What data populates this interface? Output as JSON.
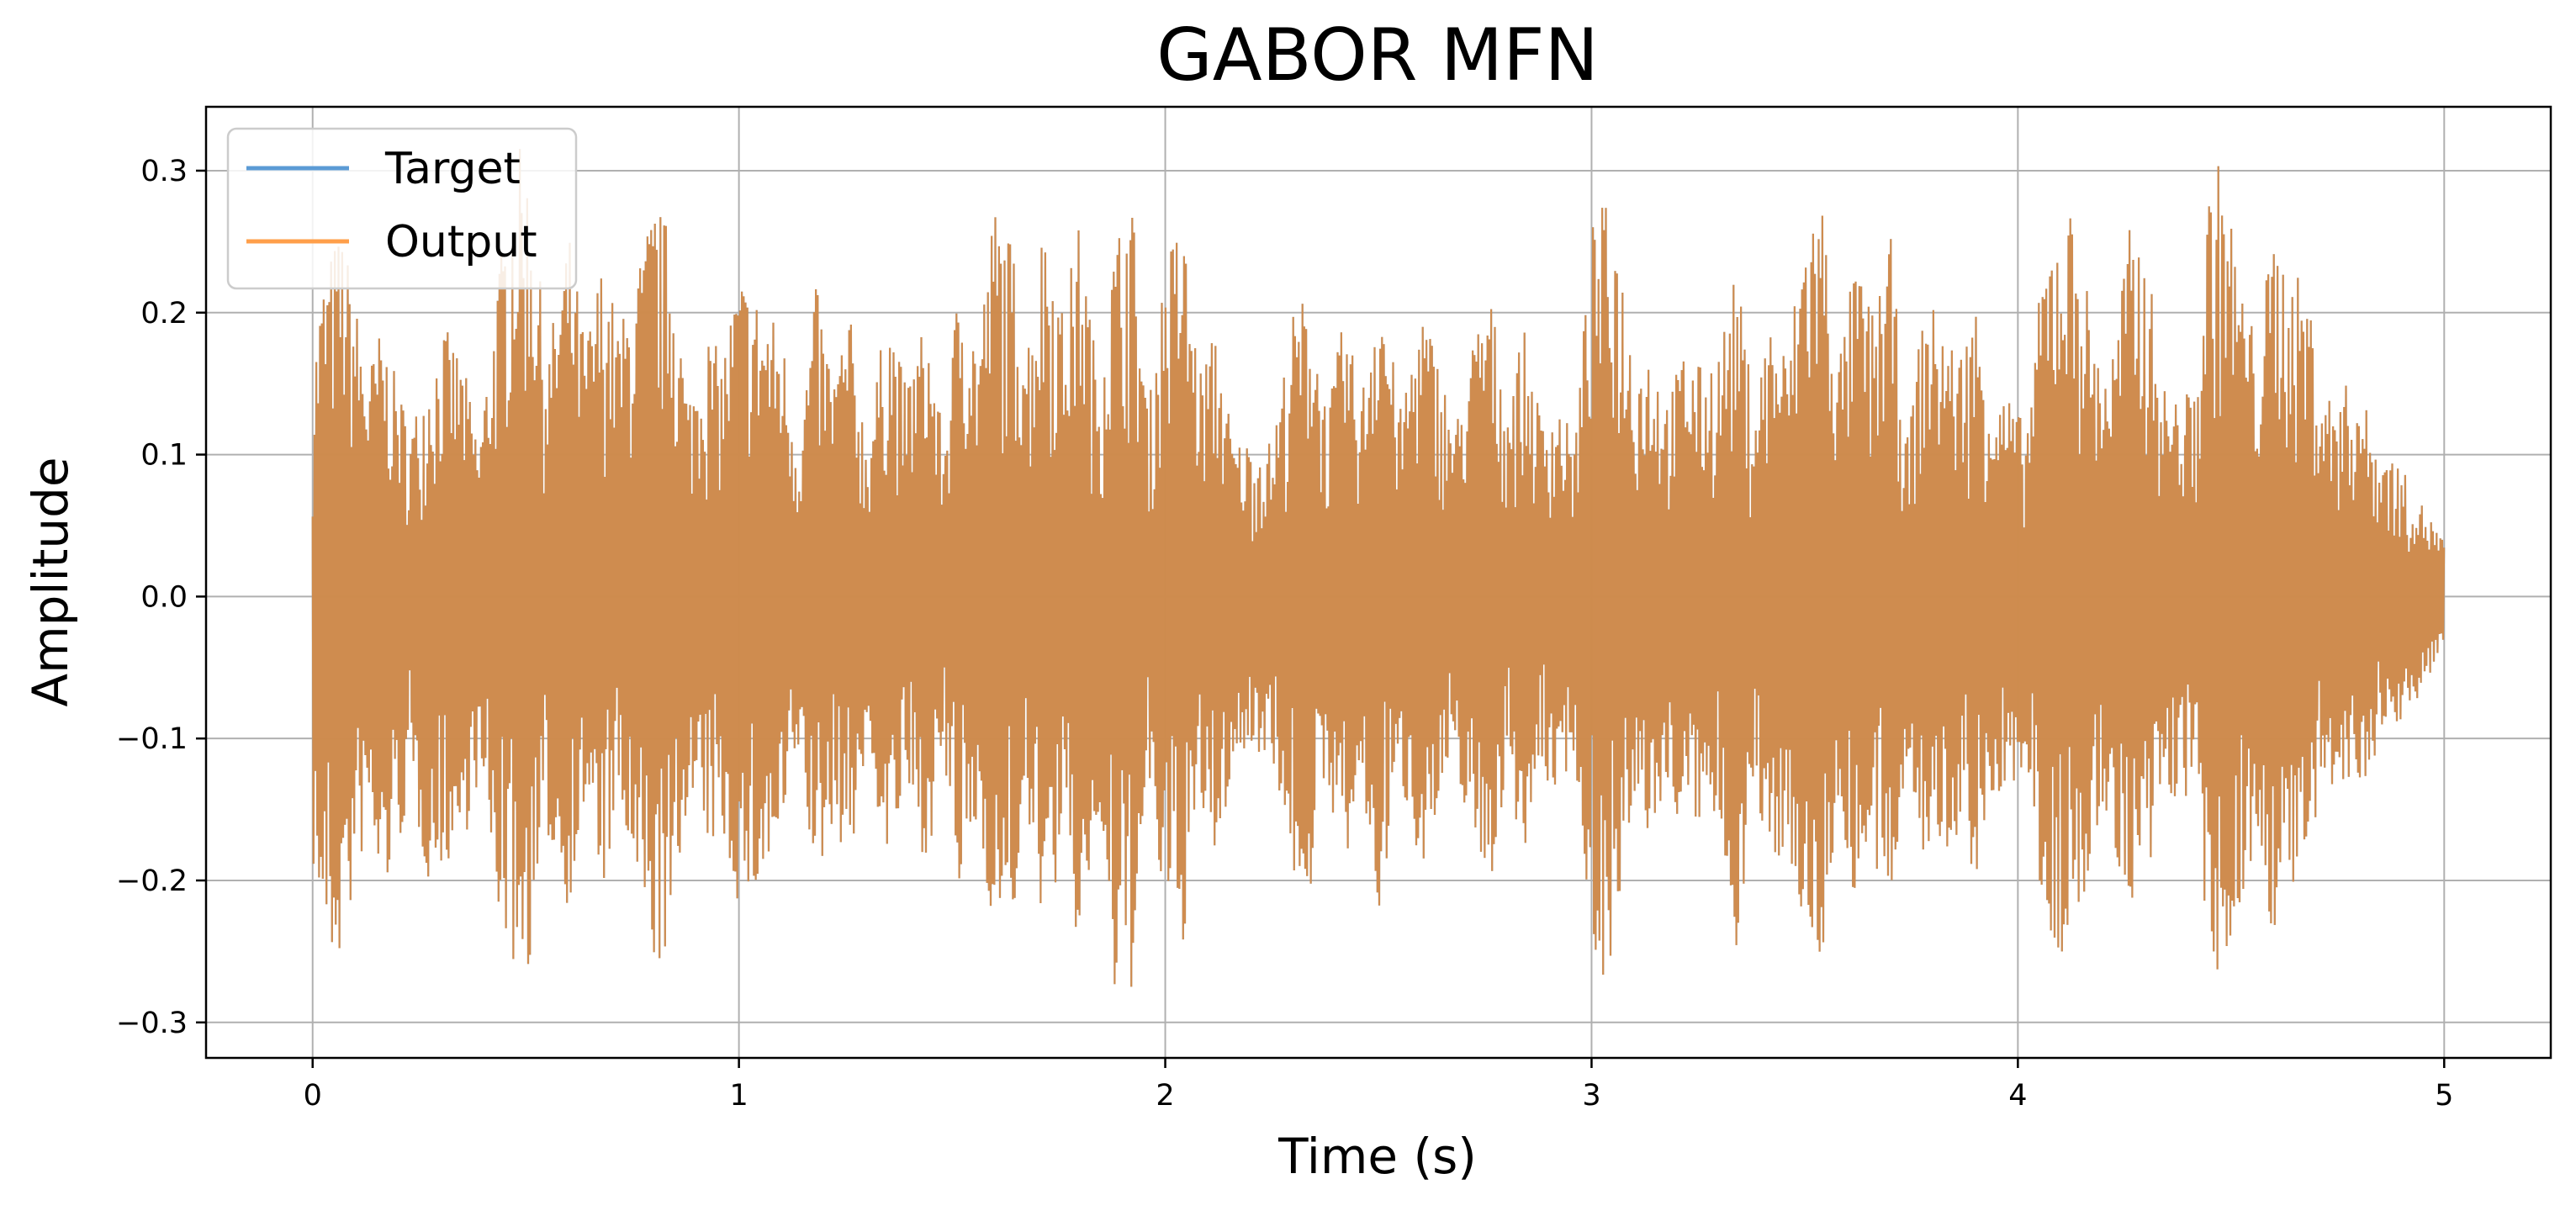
{
  "chart_data": {
    "type": "line",
    "title": "GABOR MFN",
    "xlabel": "Time (s)",
    "ylabel": "Amplitude",
    "xlim": [
      -0.25,
      5.25
    ],
    "ylim": [
      -0.325,
      0.345
    ],
    "xticks": [
      0,
      1,
      2,
      3,
      4,
      5
    ],
    "xtick_labels": [
      "0",
      "1",
      "2",
      "3",
      "4",
      "5"
    ],
    "yticks": [
      -0.3,
      -0.2,
      -0.1,
      0.0,
      0.1,
      0.2,
      0.3
    ],
    "ytick_labels": [
      "−0.3",
      "−0.2",
      "−0.1",
      "0.0",
      "0.1",
      "0.2",
      "0.3"
    ],
    "grid": true,
    "legend_position": "top-left",
    "series": [
      {
        "name": "Target",
        "color": "#5b9bd5",
        "envelope": {
          "t": [
            0.0,
            0.02,
            0.05,
            0.07,
            0.1,
            0.13,
            0.16,
            0.2,
            0.23,
            0.27,
            0.31,
            0.35,
            0.39,
            0.44,
            0.48,
            0.51,
            0.55,
            0.6,
            0.64,
            0.68,
            0.72,
            0.76,
            0.8,
            0.84,
            0.88,
            0.92,
            0.96,
            1.0,
            1.05,
            1.1,
            1.14,
            1.18,
            1.22,
            1.26,
            1.3,
            1.35,
            1.39,
            1.44,
            1.48,
            1.52,
            1.56,
            1.6,
            1.64,
            1.68,
            1.72,
            1.76,
            1.8,
            1.84,
            1.88,
            1.92,
            1.96,
            2.0,
            2.04,
            2.08,
            2.12,
            2.16,
            2.2,
            2.25,
            2.3,
            2.34,
            2.38,
            2.42,
            2.46,
            2.5,
            2.55,
            2.6,
            2.64,
            2.68,
            2.72,
            2.76,
            2.8,
            2.84,
            2.88,
            2.92,
            2.96,
            3.0,
            3.03,
            3.06,
            3.1,
            3.14,
            3.18,
            3.22,
            3.26,
            3.3,
            3.34,
            3.38,
            3.42,
            3.46,
            3.5,
            3.54,
            3.58,
            3.62,
            3.66,
            3.7,
            3.74,
            3.78,
            3.82,
            3.86,
            3.9,
            3.94,
            3.98,
            4.02,
            4.06,
            4.1,
            4.14,
            4.18,
            4.22,
            4.26,
            4.3,
            4.34,
            4.38,
            4.42,
            4.45,
            4.48,
            4.52,
            4.56,
            4.6,
            4.64,
            4.68,
            4.72,
            4.76,
            4.8,
            4.84,
            4.88,
            4.92,
            4.96,
            5.0
          ],
          "upper": [
            0.16,
            0.22,
            0.25,
            0.26,
            0.21,
            0.16,
            0.19,
            0.15,
            0.12,
            0.16,
            0.19,
            0.17,
            0.11,
            0.24,
            0.32,
            0.3,
            0.17,
            0.26,
            0.18,
            0.24,
            0.19,
            0.23,
            0.28,
            0.26,
            0.14,
            0.19,
            0.17,
            0.23,
            0.21,
            0.19,
            0.11,
            0.22,
            0.16,
            0.2,
            0.11,
            0.21,
            0.15,
            0.2,
            0.11,
            0.24,
            0.18,
            0.28,
            0.25,
            0.19,
            0.28,
            0.2,
            0.27,
            0.16,
            0.25,
            0.29,
            0.13,
            0.24,
            0.27,
            0.16,
            0.19,
            0.11,
            0.11,
            0.11,
            0.2,
            0.22,
            0.13,
            0.2,
            0.14,
            0.25,
            0.13,
            0.21,
            0.17,
            0.12,
            0.18,
            0.22,
            0.14,
            0.19,
            0.13,
            0.14,
            0.11,
            0.26,
            0.28,
            0.26,
            0.17,
            0.18,
            0.14,
            0.18,
            0.16,
            0.18,
            0.23,
            0.14,
            0.2,
            0.17,
            0.27,
            0.29,
            0.17,
            0.24,
            0.2,
            0.26,
            0.11,
            0.21,
            0.2,
            0.17,
            0.21,
            0.15,
            0.14,
            0.12,
            0.24,
            0.28,
            0.27,
            0.18,
            0.17,
            0.26,
            0.25,
            0.15,
            0.14,
            0.15,
            0.3,
            0.31,
            0.23,
            0.18,
            0.26,
            0.23,
            0.22,
            0.14,
            0.15,
            0.15,
            0.11,
            0.1,
            0.08,
            0.06,
            0.04
          ],
          "lower": [
            -0.19,
            -0.23,
            -0.27,
            -0.25,
            -0.21,
            -0.16,
            -0.22,
            -0.18,
            -0.14,
            -0.2,
            -0.19,
            -0.18,
            -0.13,
            -0.23,
            -0.27,
            -0.26,
            -0.17,
            -0.22,
            -0.15,
            -0.21,
            -0.15,
            -0.22,
            -0.26,
            -0.26,
            -0.14,
            -0.18,
            -0.17,
            -0.22,
            -0.21,
            -0.18,
            -0.11,
            -0.21,
            -0.16,
            -0.19,
            -0.11,
            -0.19,
            -0.14,
            -0.19,
            -0.12,
            -0.22,
            -0.16,
            -0.24,
            -0.23,
            -0.17,
            -0.24,
            -0.18,
            -0.26,
            -0.16,
            -0.29,
            -0.28,
            -0.14,
            -0.23,
            -0.25,
            -0.15,
            -0.19,
            -0.12,
            -0.11,
            -0.11,
            -0.2,
            -0.21,
            -0.13,
            -0.2,
            -0.14,
            -0.23,
            -0.13,
            -0.19,
            -0.16,
            -0.12,
            -0.17,
            -0.21,
            -0.13,
            -0.18,
            -0.13,
            -0.14,
            -0.11,
            -0.25,
            -0.27,
            -0.24,
            -0.16,
            -0.17,
            -0.14,
            -0.17,
            -0.16,
            -0.17,
            -0.25,
            -0.14,
            -0.2,
            -0.17,
            -0.25,
            -0.26,
            -0.15,
            -0.22,
            -0.19,
            -0.24,
            -0.11,
            -0.19,
            -0.19,
            -0.17,
            -0.2,
            -0.15,
            -0.14,
            -0.12,
            -0.23,
            -0.26,
            -0.25,
            -0.17,
            -0.16,
            -0.24,
            -0.22,
            -0.15,
            -0.14,
            -0.15,
            -0.28,
            -0.28,
            -0.22,
            -0.18,
            -0.24,
            -0.21,
            -0.2,
            -0.14,
            -0.14,
            -0.14,
            -0.11,
            -0.1,
            -0.08,
            -0.06,
            -0.04
          ]
        }
      },
      {
        "name": "Output",
        "color": "#ff9f4a",
        "envelope": "same-as-Target"
      }
    ],
    "overlap_color": "#d38a47"
  }
}
